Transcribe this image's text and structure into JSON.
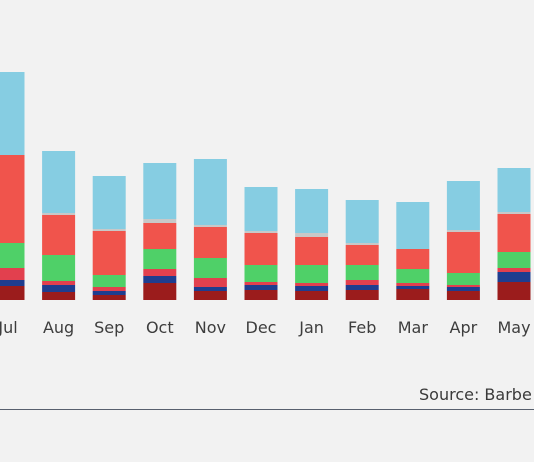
{
  "chart_data": {
    "type": "bar",
    "stacked": true,
    "categories": [
      "Jul",
      "Aug",
      "Sep",
      "Oct",
      "Nov",
      "Dec",
      "Jan",
      "Feb",
      "Mar",
      "Apr",
      "May"
    ],
    "series": [
      {
        "color": "#9b1c1c",
        "values": [
          14,
          8,
          5,
          17,
          9,
          10,
          9,
          10,
          11,
          9,
          18
        ]
      },
      {
        "color": "#1f3d8f",
        "values": [
          6,
          7,
          4,
          7,
          4,
          5,
          5,
          5,
          3,
          4,
          10
        ]
      },
      {
        "color": "#e2404e",
        "values": [
          12,
          4,
          4,
          7,
          9,
          3,
          3,
          5,
          3,
          2,
          4
        ]
      },
      {
        "color": "#4fd068",
        "values": [
          25,
          26,
          12,
          20,
          20,
          17,
          18,
          15,
          14,
          12,
          16
        ]
      },
      {
        "color": "#f0544c",
        "values": [
          88,
          40,
          44,
          26,
          31,
          32,
          28,
          20,
          20,
          41,
          38
        ]
      },
      {
        "color": "#c8c8c8",
        "values": [
          0,
          2,
          2,
          4,
          2,
          2,
          4,
          2,
          0,
          2,
          2
        ]
      },
      {
        "color": "#86cde2",
        "values": [
          83,
          62,
          53,
          56,
          66,
          44,
          44,
          43,
          47,
          49,
          44
        ]
      }
    ],
    "ylim": [
      0,
      236
    ]
  },
  "source": {
    "text": "Source: Barbe"
  }
}
